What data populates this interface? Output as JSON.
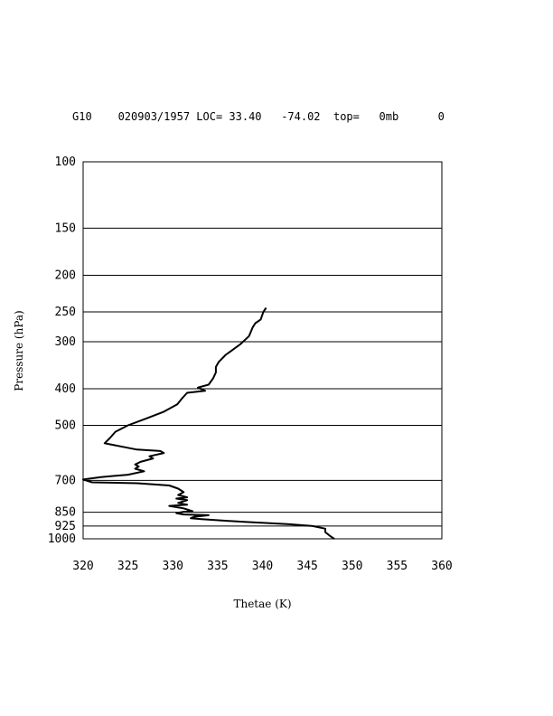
{
  "header": {
    "text": "G10    020903/1957 LOC= 33.40   -74.02  top=   0mb      0"
  },
  "chart_data": {
    "type": "line",
    "title": "",
    "xlabel": "Thetae (K)",
    "ylabel": "Pressure (hPa)",
    "xlim": [
      320,
      360
    ],
    "ylim": [
      1000,
      100
    ],
    "y_scale": "log",
    "grid": "horizontal",
    "x_ticks": [
      320,
      325,
      330,
      335,
      340,
      345,
      350,
      355,
      360
    ],
    "y_ticks": [
      100,
      150,
      200,
      250,
      300,
      400,
      500,
      700,
      850,
      925,
      1000
    ],
    "series": [
      {
        "name": "",
        "points": [
          [
            340.4,
            244
          ],
          [
            340.1,
            250
          ],
          [
            339.8,
            262
          ],
          [
            339.2,
            268
          ],
          [
            338.9,
            275
          ],
          [
            338.5,
            290
          ],
          [
            337.5,
            305
          ],
          [
            335.9,
            325
          ],
          [
            335.1,
            340
          ],
          [
            334.8,
            350
          ],
          [
            334.8,
            362
          ],
          [
            334.5,
            375
          ],
          [
            334.0,
            390
          ],
          [
            332.8,
            397
          ],
          [
            333.6,
            405
          ],
          [
            331.6,
            410
          ],
          [
            331.0,
            425
          ],
          [
            330.5,
            440
          ],
          [
            329.0,
            460
          ],
          [
            327.0,
            480
          ],
          [
            325.0,
            500
          ],
          [
            323.6,
            520
          ],
          [
            323.0,
            540
          ],
          [
            322.4,
            558
          ],
          [
            326.0,
            580
          ],
          [
            328.6,
            585
          ],
          [
            329.0,
            592
          ],
          [
            327.4,
            604
          ],
          [
            327.8,
            612
          ],
          [
            326.4,
            625
          ],
          [
            325.8,
            635
          ],
          [
            326.2,
            643
          ],
          [
            325.8,
            652
          ],
          [
            326.8,
            662
          ],
          [
            325.0,
            676
          ],
          [
            322.0,
            686
          ],
          [
            320.0,
            696
          ],
          [
            321.0,
            708
          ],
          [
            326.0,
            712
          ],
          [
            329.6,
            722
          ],
          [
            330.6,
            736
          ],
          [
            331.2,
            752
          ],
          [
            330.6,
            765
          ],
          [
            331.6,
            776
          ],
          [
            330.4,
            782
          ],
          [
            331.6,
            790
          ],
          [
            330.6,
            803
          ],
          [
            331.6,
            812
          ],
          [
            329.6,
            818
          ],
          [
            331.2,
            830
          ],
          [
            332.2,
            845
          ],
          [
            331.2,
            848
          ],
          [
            330.4,
            855
          ],
          [
            331.2,
            862
          ],
          [
            334.0,
            866
          ],
          [
            332.4,
            874
          ],
          [
            332.0,
            882
          ],
          [
            333.2,
            887
          ],
          [
            338.0,
            902
          ],
          [
            343.0,
            915
          ],
          [
            345.6,
            925
          ],
          [
            347.0,
            940
          ],
          [
            347.0,
            960
          ],
          [
            347.6,
            985
          ],
          [
            348.0,
            1000
          ]
        ]
      }
    ]
  }
}
